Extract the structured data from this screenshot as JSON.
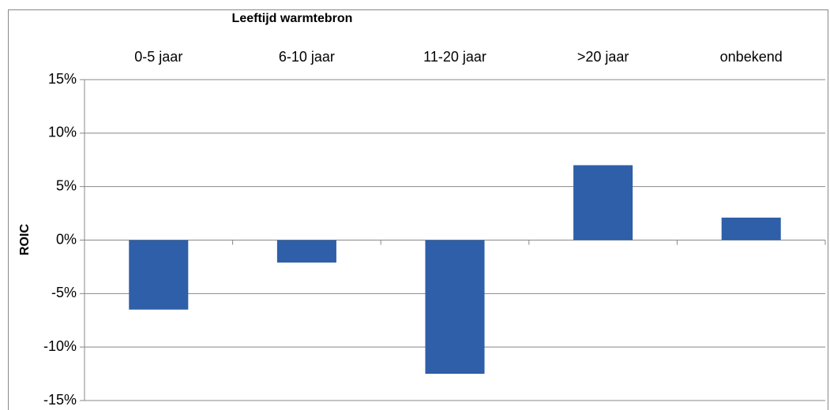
{
  "chart_data": {
    "type": "bar",
    "x_label": "Leeftijd warmtebron",
    "y_label": "ROIC",
    "categories": [
      "0-5 jaar",
      "6-10 jaar",
      "11-20 jaar",
      ">20 jaar",
      "onbekend"
    ],
    "values": [
      -6.5,
      -2.1,
      -12.5,
      7.0,
      2.1
    ],
    "color": "#2e5fa8",
    "ylim": [
      -15,
      15
    ],
    "yticks": [
      {
        "value": -15,
        "label": "-15%"
      },
      {
        "value": -10,
        "label": "-10%"
      },
      {
        "value": -5,
        "label": "-5%"
      },
      {
        "value": 0,
        "label": "0%"
      },
      {
        "value": 5,
        "label": "5%"
      },
      {
        "value": 10,
        "label": "10%"
      },
      {
        "value": 15,
        "label": "15%"
      }
    ],
    "grid": true
  }
}
